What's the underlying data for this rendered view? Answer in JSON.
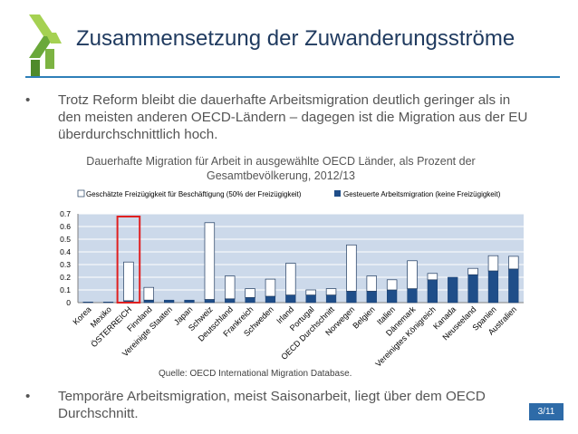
{
  "header": {
    "title": "Zusammensetzung der Zuwanderungsströme"
  },
  "bullets": [
    {
      "symbol": "•",
      "text": "Trotz Reform bleibt die dauerhafte Arbeitsmigration deutlich geringer als in den meisten anderen OECD-Ländern – dagegen ist die Migration aus der EU überdurchschnittlich hoch."
    },
    {
      "symbol": "•",
      "text": "Temporäre Arbeitsmigration, meist Saisonarbeit, liegt über dem OECD Durchschnitt."
    }
  ],
  "colors": {
    "title": "#1f3a5f",
    "rule": "#2e7fb8",
    "plot_bg": "#ccd9ea",
    "steered": "#1f4e89",
    "free": "#ffffff",
    "highlight": "#e02020",
    "logo_green": "#7cb342"
  },
  "footer": {
    "source": "Quelle: OECD International Migration Database.",
    "page": "3/11"
  },
  "chart_data": {
    "type": "bar",
    "stacked": true,
    "title": "Dauerhafte Migration für Arbeit in ausgewählte OECD Länder, als Prozent der Gesamtbevölkerung, 2012/13",
    "ylim": [
      0,
      0.7
    ],
    "yticks": [
      "0",
      "0.1",
      "0.2",
      "0.3",
      "0.4",
      "0.5",
      "0.6",
      "0.7"
    ],
    "grid": true,
    "legend_position": "top",
    "categories": [
      "Korea",
      "Mexiko",
      "ÖSTERREICH",
      "Finnland",
      "Vereinigte Staaten",
      "Japan",
      "Schweiz",
      "Deutschland",
      "Frankreich",
      "Schweden",
      "Irland",
      "Portugal",
      "OECD Durchschnitt",
      "Norwegen",
      "Belgien",
      "Italien",
      "Dänemark",
      "Vereinigtes Königreich",
      "Kanada",
      "Neuseeland",
      "Spanien",
      "Australien"
    ],
    "highlight_category": "ÖSTERREICH",
    "series": [
      {
        "name": "Gesteuerte Arbeitsmigration (keine Freizügigkeit)",
        "values": [
          0.005,
          0.005,
          0.015,
          0.02,
          0.02,
          0.02,
          0.025,
          0.03,
          0.04,
          0.05,
          0.06,
          0.06,
          0.06,
          0.09,
          0.09,
          0.1,
          0.11,
          0.18,
          0.2,
          0.22,
          0.25,
          0.265
        ]
      },
      {
        "name": "Geschätzte Freizügigkeit für Beschäftigung (50% der Freizügigkeit)",
        "values": [
          0.0,
          0.0,
          0.305,
          0.1,
          0.0,
          0.0,
          0.605,
          0.18,
          0.07,
          0.135,
          0.25,
          0.04,
          0.05,
          0.365,
          0.12,
          0.08,
          0.22,
          0.05,
          0.0,
          0.05,
          0.12,
          0.1
        ]
      }
    ]
  }
}
